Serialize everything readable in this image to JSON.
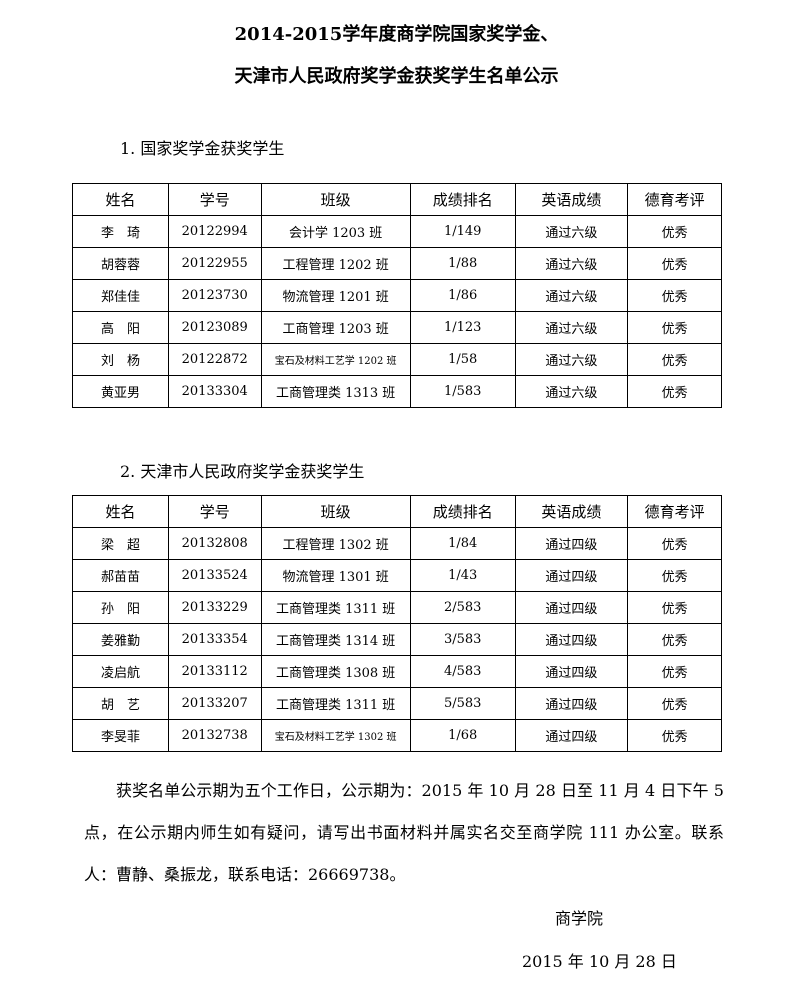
{
  "title_line1": "2014-2015学年度商学院国家奖学金、",
  "title_line2": "天津市人民政府奖学金获奖学生名单公示",
  "columns": [
    "姓名",
    "学号",
    "班级",
    "成绩排名",
    "英语成绩",
    "德育考评"
  ],
  "section1": {
    "heading": "1. 国家奖学金获奖学生",
    "rows": [
      [
        "李　琦",
        "20122994",
        "会计学 1203 班",
        "1/149",
        "通过六级",
        "优秀"
      ],
      [
        "胡蓉蓉",
        "20122955",
        "工程管理 1202 班",
        "1/88",
        "通过六级",
        "优秀"
      ],
      [
        "郑佳佳",
        "20123730",
        "物流管理 1201 班",
        "1/86",
        "通过六级",
        "优秀"
      ],
      [
        "高　阳",
        "20123089",
        "工商管理 1203 班",
        "1/123",
        "通过六级",
        "优秀"
      ],
      [
        "刘　杨",
        "20122872",
        "宝石及材料工艺学 1202 班",
        "1/58",
        "通过六级",
        "优秀"
      ],
      [
        "黄亚男",
        "20133304",
        "工商管理类 1313 班",
        "1/583",
        "通过六级",
        "优秀"
      ]
    ]
  },
  "section2": {
    "heading": "2. 天津市人民政府奖学金获奖学生",
    "rows": [
      [
        "梁　超",
        "20132808",
        "工程管理 1302 班",
        "1/84",
        "通过四级",
        "优秀"
      ],
      [
        "郝苗苗",
        "20133524",
        "物流管理 1301 班",
        "1/43",
        "通过四级",
        "优秀"
      ],
      [
        "孙　阳",
        "20133229",
        "工商管理类 1311 班",
        "2/583",
        "通过四级",
        "优秀"
      ],
      [
        "姜雅勤",
        "20133354",
        "工商管理类 1314 班",
        "3/583",
        "通过四级",
        "优秀"
      ],
      [
        "凌启航",
        "20133112",
        "工商管理类 1308 班",
        "4/583",
        "通过四级",
        "优秀"
      ],
      [
        "胡　艺",
        "20133207",
        "工商管理类 1311 班",
        "5/583",
        "通过四级",
        "优秀"
      ],
      [
        "李旻菲",
        "20132738",
        "宝石及材料工艺学 1302 班",
        "1/68",
        "通过四级",
        "优秀"
      ]
    ]
  },
  "notice": "获奖名单公示期为五个工作日，公示期为：2015 年 10 月 28 日至 11 月 4 日下午 5 点，在公示期内师生如有疑问，请写出书面材料并属实名交至商学院 111 办公室。联系人：曹静、桑振龙，联系电话：26669738。",
  "signature": "商学院",
  "date": "2015 年 10 月 28 日"
}
